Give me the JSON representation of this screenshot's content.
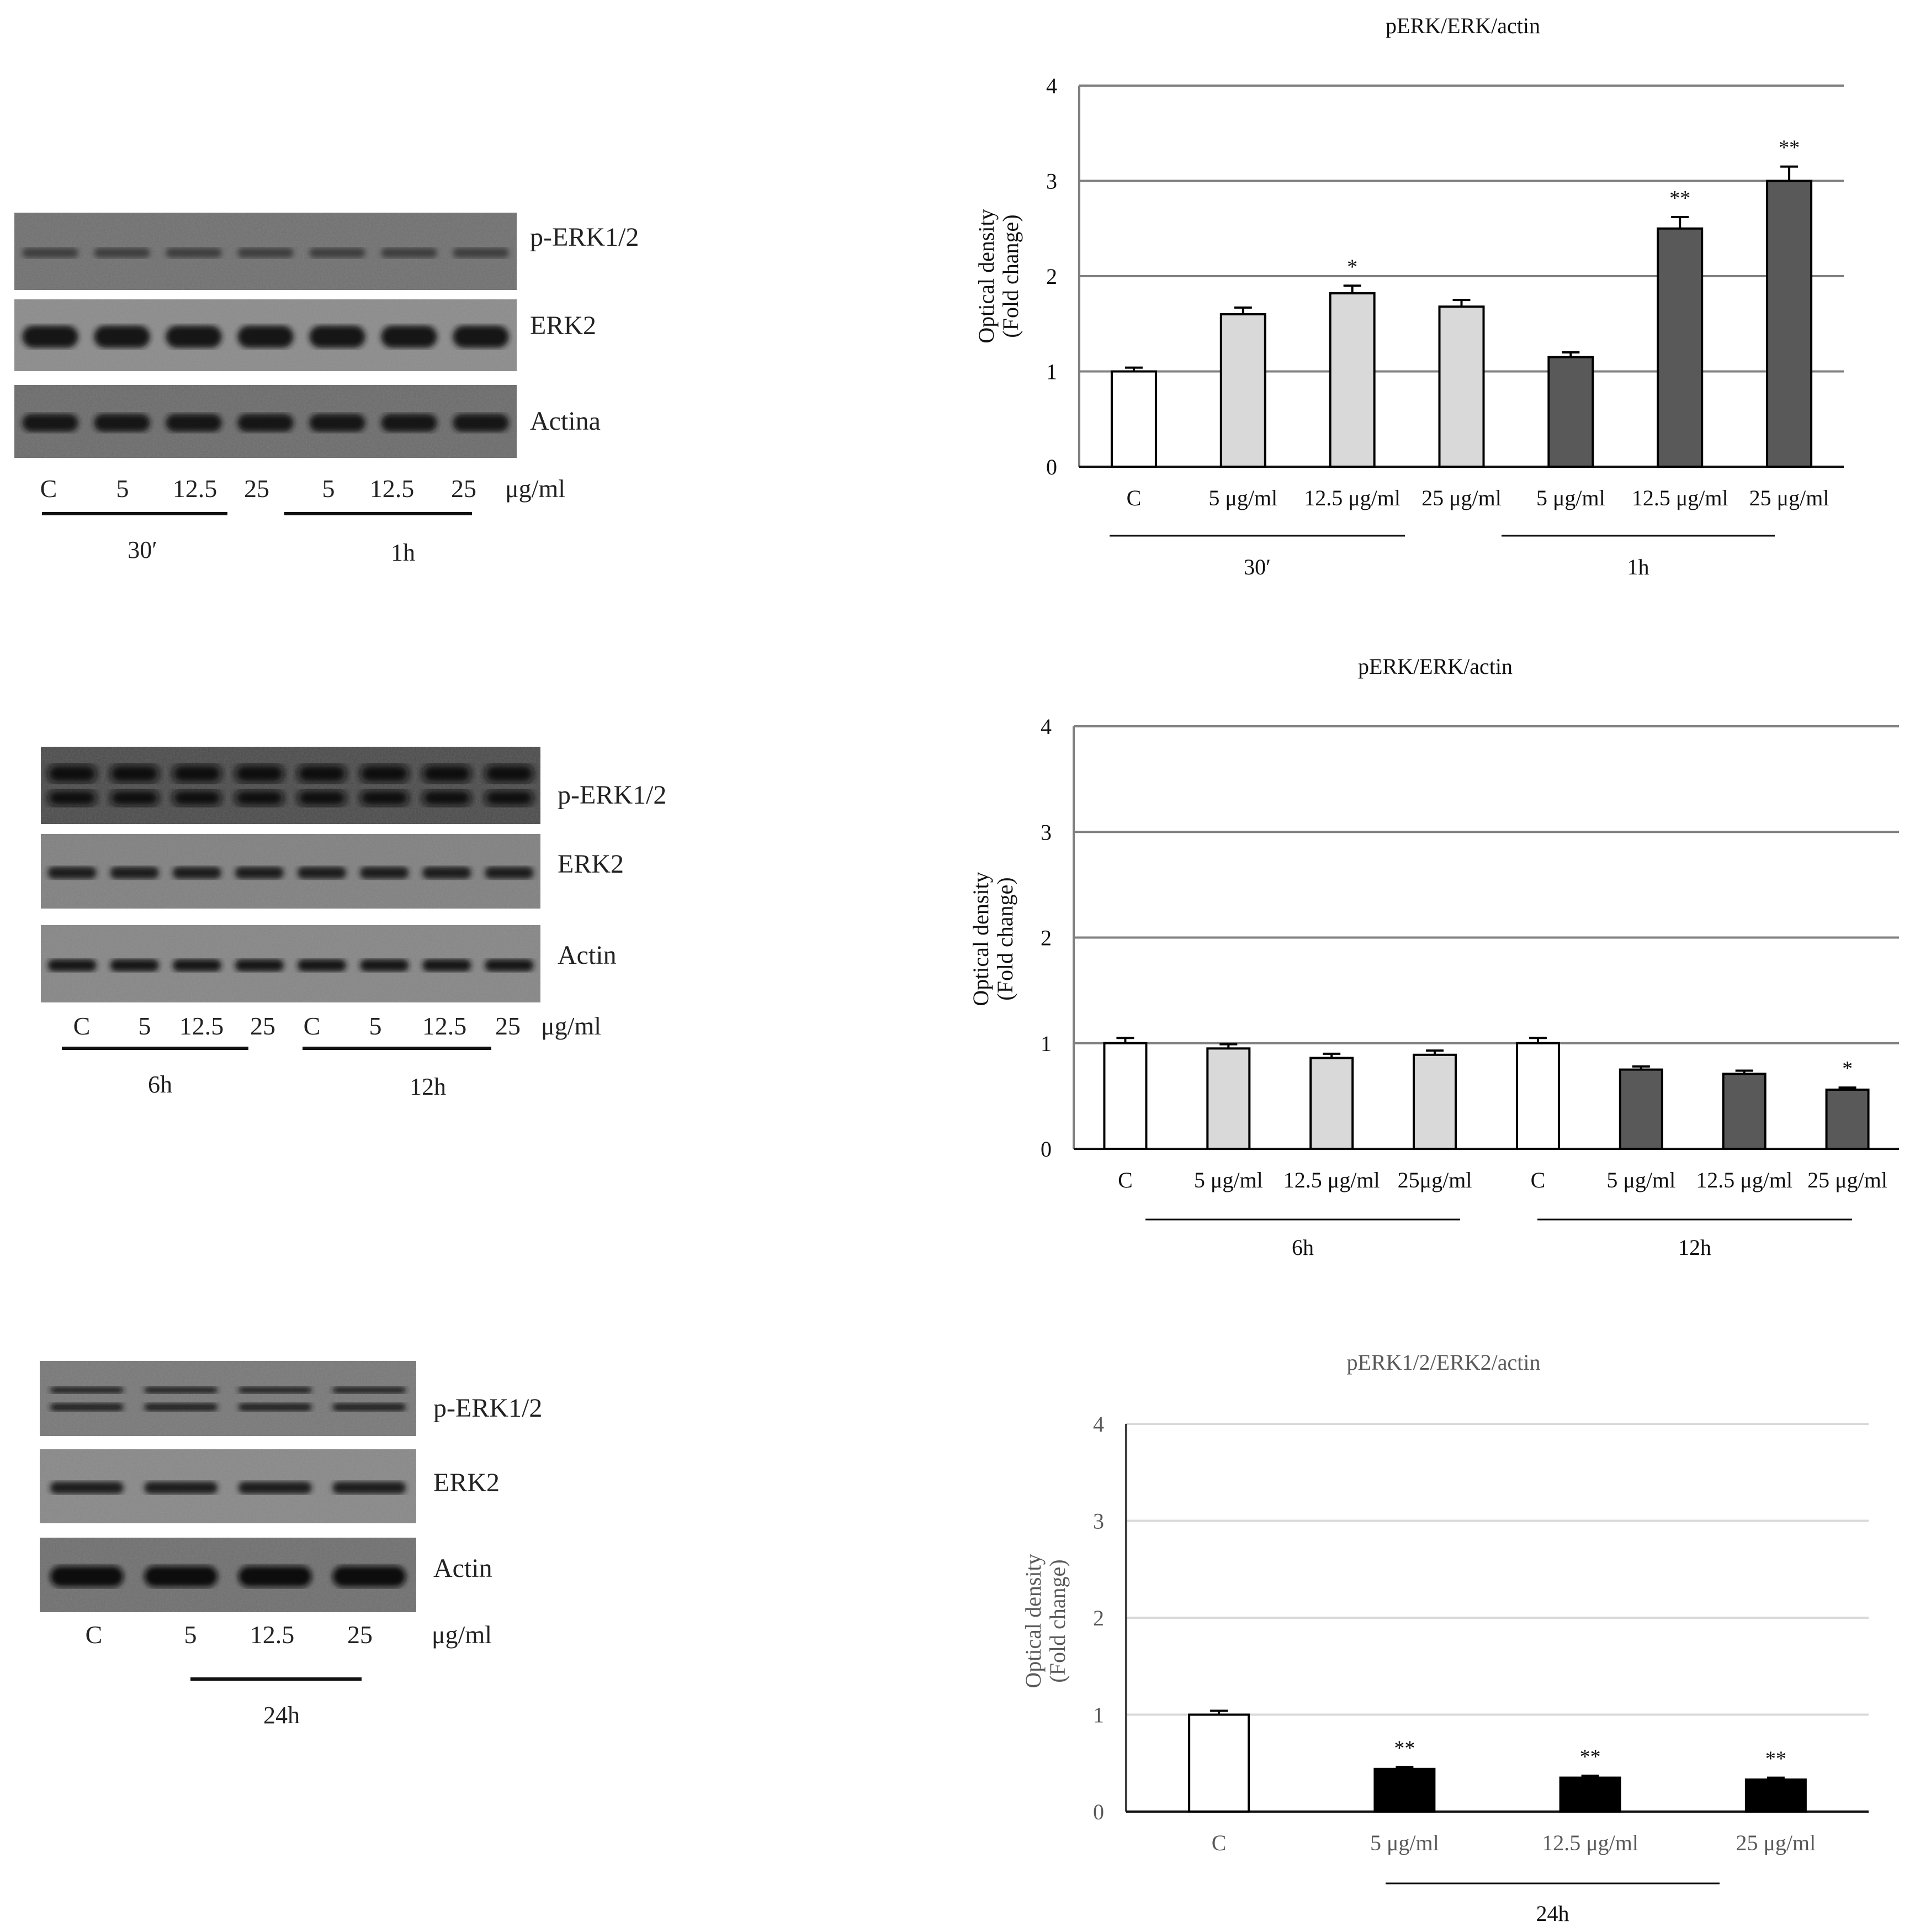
{
  "blots": [
    {
      "rows": [
        "p-ERK1/2",
        "ERK2",
        "Actina"
      ],
      "lanes": [
        "C",
        "5",
        "12.5",
        "25",
        "5",
        "12.5",
        "25"
      ],
      "unit": "μg/ml",
      "groups": [
        "30′",
        "1h"
      ]
    },
    {
      "rows": [
        "p-ERK1/2",
        "ERK2",
        "Actin"
      ],
      "lanes": [
        "C",
        "5",
        "12.5",
        "25",
        "C",
        "5",
        "12.5",
        "25"
      ],
      "unit": "μg/ml",
      "groups": [
        "6h",
        "12h"
      ]
    },
    {
      "rows": [
        "p-ERK1/2",
        "ERK2",
        "Actin"
      ],
      "lanes": [
        "C",
        "5",
        "12.5",
        "25"
      ],
      "unit": "μg/ml",
      "groups": [
        "24h"
      ]
    }
  ],
  "chart_data": [
    {
      "type": "bar",
      "title": "pERK/ERK/actin",
      "ylabel": "Optical density (Fold change)",
      "ylabel_lines": [
        "Optical density",
        "(Fold change)"
      ],
      "ylim": [
        0,
        4
      ],
      "yticks": [
        0,
        1,
        2,
        3,
        4
      ],
      "categories": [
        "C",
        "5 μg/ml",
        "12.5 μg/ml",
        "25 μg/ml",
        "5 μg/ml",
        "12.5 μg/ml",
        "25 μg/ml"
      ],
      "values": [
        1.0,
        1.6,
        1.82,
        1.68,
        1.15,
        2.5,
        3.0
      ],
      "errors": [
        0.04,
        0.07,
        0.08,
        0.07,
        0.05,
        0.12,
        0.15
      ],
      "colors": [
        "#ffffff",
        "#d9d9d9",
        "#d9d9d9",
        "#d9d9d9",
        "#595959",
        "#595959",
        "#595959"
      ],
      "significance": [
        "",
        "",
        "*",
        "",
        "",
        "**",
        "**"
      ],
      "groups": [
        {
          "label": "30′",
          "from": 0,
          "to": 3
        },
        {
          "label": "1h",
          "from": 4,
          "to": 6
        }
      ]
    },
    {
      "type": "bar",
      "title": "pERK/ERK/actin",
      "ylabel": "Optical density (Fold change)",
      "ylabel_lines": [
        "Optical density",
        "(Fold change)"
      ],
      "ylim": [
        0,
        4
      ],
      "yticks": [
        0,
        1,
        2,
        3,
        4
      ],
      "categories": [
        "C",
        "5 μg/ml",
        "12.5 μg/ml",
        "25μg/ml",
        "C",
        "5 μg/ml",
        "12.5 μg/ml",
        "25 μg/ml"
      ],
      "values": [
        1.0,
        0.95,
        0.86,
        0.89,
        1.0,
        0.75,
        0.71,
        0.56
      ],
      "errors": [
        0.05,
        0.04,
        0.04,
        0.04,
        0.05,
        0.03,
        0.03,
        0.02
      ],
      "colors": [
        "#ffffff",
        "#d9d9d9",
        "#d9d9d9",
        "#d9d9d9",
        "#ffffff",
        "#595959",
        "#595959",
        "#595959"
      ],
      "significance": [
        "",
        "",
        "",
        "",
        "",
        "",
        "",
        "*"
      ],
      "groups": [
        {
          "label": "6h",
          "from": 0,
          "to": 3
        },
        {
          "label": "12h",
          "from": 4,
          "to": 7
        }
      ]
    },
    {
      "type": "bar",
      "title": "pERK1/2/ERK2/actin",
      "ylabel": "Optical density (Fold change)",
      "ylabel_lines": [
        "Optical density",
        "(Fold change)"
      ],
      "ylim": [
        0,
        4
      ],
      "yticks": [
        0,
        1,
        2,
        3,
        4
      ],
      "categories": [
        "C",
        "5 μg/ml",
        "12.5 μg/ml",
        "25 μg/ml"
      ],
      "values": [
        1.0,
        0.44,
        0.35,
        0.33
      ],
      "errors": [
        0.04,
        0.02,
        0.02,
        0.02
      ],
      "colors": [
        "#ffffff",
        "#000000",
        "#000000",
        "#000000"
      ],
      "significance": [
        "",
        "**",
        "**",
        "**"
      ],
      "groups": [
        {
          "label": "24h",
          "from": 1,
          "to": 3
        }
      ]
    }
  ]
}
